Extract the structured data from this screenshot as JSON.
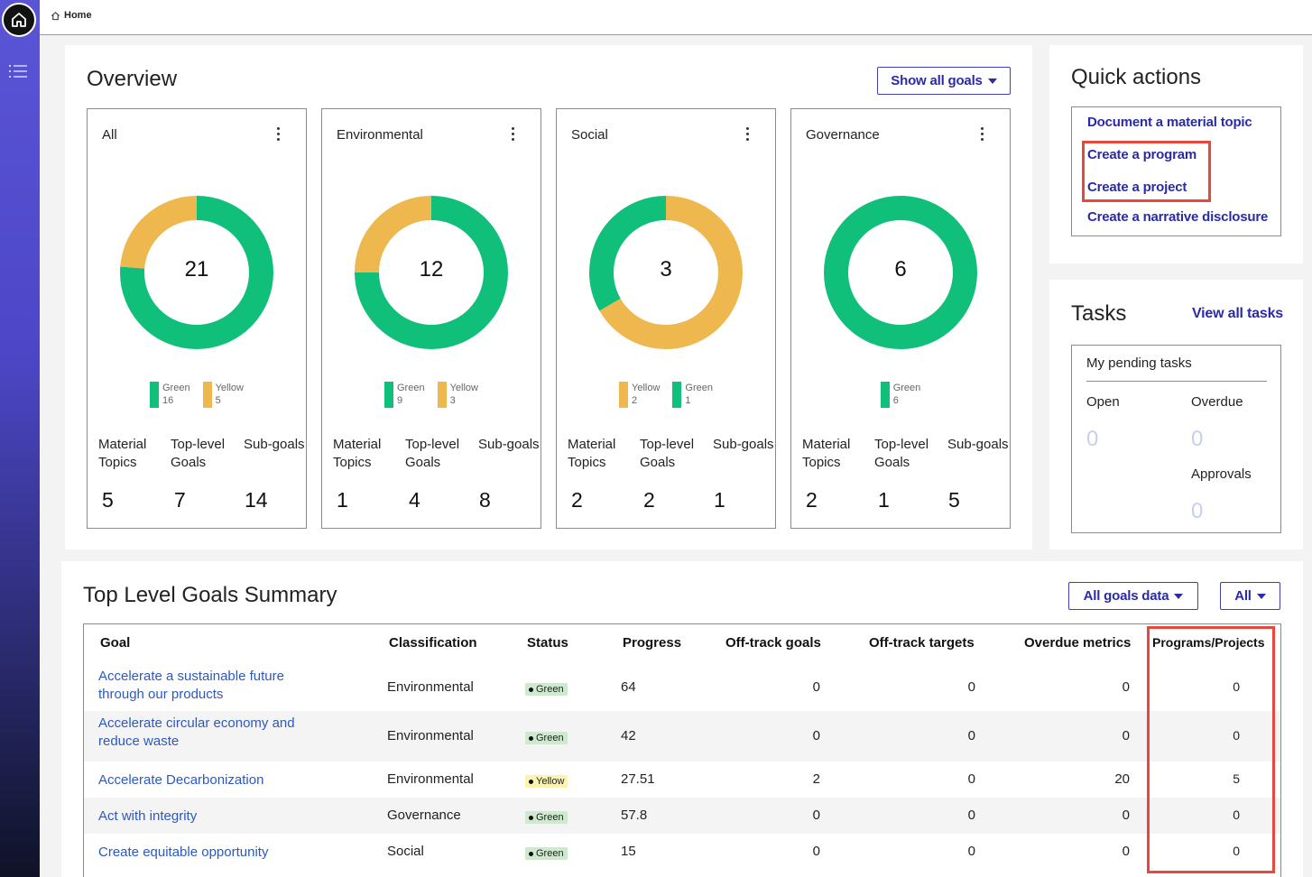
{
  "breadcrumb": {
    "home": "Home"
  },
  "overview": {
    "title": "Overview",
    "show_goals_button": "Show all goals",
    "cards": [
      {
        "title": "All",
        "total": "21",
        "legend": [
          {
            "label": "Green",
            "value": "16",
            "color": "#10bf7a"
          },
          {
            "label": "Yellow",
            "value": "5",
            "color": "#efb84f"
          }
        ],
        "segments": [
          {
            "value": 16,
            "color": "#10bf7a"
          },
          {
            "value": 5,
            "color": "#efb84f"
          }
        ],
        "stats": [
          {
            "label": "Material Topics",
            "value": "5"
          },
          {
            "label": "Top-level Goals",
            "value": "7"
          },
          {
            "label": "Sub-goals",
            "value": "14"
          }
        ]
      },
      {
        "title": "Environmental",
        "total": "12",
        "legend": [
          {
            "label": "Green",
            "value": "9",
            "color": "#10bf7a"
          },
          {
            "label": "Yellow",
            "value": "3",
            "color": "#efb84f"
          }
        ],
        "segments": [
          {
            "value": 9,
            "color": "#10bf7a"
          },
          {
            "value": 3,
            "color": "#efb84f"
          }
        ],
        "stats": [
          {
            "label": "Material Topics",
            "value": "1"
          },
          {
            "label": "Top-level Goals",
            "value": "4"
          },
          {
            "label": "Sub-goals",
            "value": "8"
          }
        ]
      },
      {
        "title": "Social",
        "total": "3",
        "legend": [
          {
            "label": "Yellow",
            "value": "2",
            "color": "#efb84f"
          },
          {
            "label": "Green",
            "value": "1",
            "color": "#10bf7a"
          }
        ],
        "segments": [
          {
            "value": 2,
            "color": "#efb84f"
          },
          {
            "value": 1,
            "color": "#10bf7a"
          }
        ],
        "stats": [
          {
            "label": "Material Topics",
            "value": "2"
          },
          {
            "label": "Top-level Goals",
            "value": "2"
          },
          {
            "label": "Sub-goals",
            "value": "1"
          }
        ]
      },
      {
        "title": "Governance",
        "total": "6",
        "legend": [
          {
            "label": "Green",
            "value": "6",
            "color": "#10bf7a"
          }
        ],
        "segments": [
          {
            "value": 6,
            "color": "#10bf7a"
          }
        ],
        "stats": [
          {
            "label": "Material Topics",
            "value": "2"
          },
          {
            "label": "Top-level Goals",
            "value": "1"
          },
          {
            "label": "Sub-goals",
            "value": "5"
          }
        ]
      }
    ]
  },
  "quick_actions": {
    "title": "Quick actions",
    "links": [
      "Document a material topic",
      "Create a  program",
      "Create a  project",
      "Create a narrative disclosure"
    ]
  },
  "tasks": {
    "title": "Tasks",
    "view_all": "View all tasks",
    "pending_title": "My pending tasks",
    "open_label": "Open",
    "open_value": "0",
    "overdue_label": "Overdue",
    "overdue_value": "0",
    "approvals_label": "Approvals",
    "approvals_value": "0"
  },
  "summary": {
    "title": "Top Level Goals Summary",
    "filter_button": "All goals data",
    "scope_button": "All",
    "columns": [
      "Goal",
      "Classification",
      "Status",
      "Progress",
      "Off-track goals",
      "Off-track targets",
      "Overdue metrics",
      "Programs/Projects"
    ],
    "rows": [
      {
        "goal": "Accelerate a sustainable future through our products",
        "classification": "Environmental",
        "status": "Green",
        "progress": "64",
        "offtrack_goals": "0",
        "offtrack_targets": "0",
        "overdue_metrics": "0",
        "programs": "0"
      },
      {
        "goal": "Accelerate circular economy and reduce waste",
        "classification": "Environmental",
        "status": "Green",
        "progress": "42",
        "offtrack_goals": "0",
        "offtrack_targets": "0",
        "overdue_metrics": "0",
        "programs": "0"
      },
      {
        "goal": "Accelerate Decarbonization",
        "classification": "Environmental",
        "status": "Yellow",
        "progress": "27.51",
        "offtrack_goals": "2",
        "offtrack_targets": "0",
        "overdue_metrics": "20",
        "programs": "5"
      },
      {
        "goal": "Act with integrity",
        "classification": "Governance",
        "status": "Green",
        "progress": "57.8",
        "offtrack_goals": "0",
        "offtrack_targets": "0",
        "overdue_metrics": "0",
        "programs": "0"
      },
      {
        "goal": "Create equitable opportunity",
        "classification": "Social",
        "status": "Green",
        "progress": "15",
        "offtrack_goals": "0",
        "offtrack_targets": "0",
        "overdue_metrics": "0",
        "programs": "0"
      }
    ]
  }
}
